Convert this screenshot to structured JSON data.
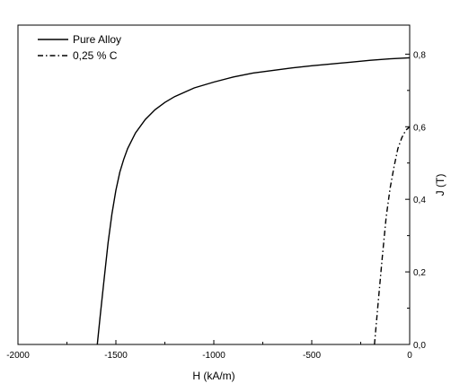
{
  "chart_data": {
    "type": "line",
    "title": "",
    "xlabel": "H (kA/m)",
    "ylabel": "J (T)",
    "xlim": [
      -2000,
      0
    ],
    "ylim": [
      0,
      0.88
    ],
    "x_ticks": [
      -2000,
      -1500,
      -1000,
      -500,
      0
    ],
    "x_tick_labels": [
      "-2000",
      "-1500",
      "-1000",
      "-500",
      "0"
    ],
    "y_ticks": [
      0,
      0.2,
      0.4,
      0.6,
      0.8
    ],
    "y_tick_labels": [
      "0,0",
      "0,2",
      "0,4",
      "0,6",
      "0,8"
    ],
    "y_axis_side": "right",
    "grid": false,
    "legend_position": "top-left",
    "series": [
      {
        "name": "Pure Alloy",
        "line_style": "solid",
        "color": "#000000",
        "x": [
          -1595,
          -1580,
          -1560,
          -1540,
          -1520,
          -1500,
          -1480,
          -1460,
          -1440,
          -1400,
          -1350,
          -1300,
          -1250,
          -1200,
          -1100,
          -1000,
          -900,
          -800,
          -700,
          -600,
          -500,
          -400,
          -300,
          -200,
          -100,
          0
        ],
        "y": [
          0.0,
          0.08,
          0.18,
          0.28,
          0.36,
          0.425,
          0.475,
          0.51,
          0.54,
          0.583,
          0.62,
          0.647,
          0.667,
          0.683,
          0.707,
          0.723,
          0.737,
          0.748,
          0.755,
          0.762,
          0.768,
          0.773,
          0.778,
          0.783,
          0.787,
          0.79
        ]
      },
      {
        "name": "0,25 % C",
        "line_style": "dash-dot",
        "color": "#000000",
        "x": [
          -180,
          -160,
          -140,
          -120,
          -100,
          -80,
          -60,
          -40,
          -20,
          0
        ],
        "y": [
          0.0,
          0.12,
          0.24,
          0.35,
          0.43,
          0.49,
          0.54,
          0.57,
          0.59,
          0.6
        ]
      }
    ]
  }
}
